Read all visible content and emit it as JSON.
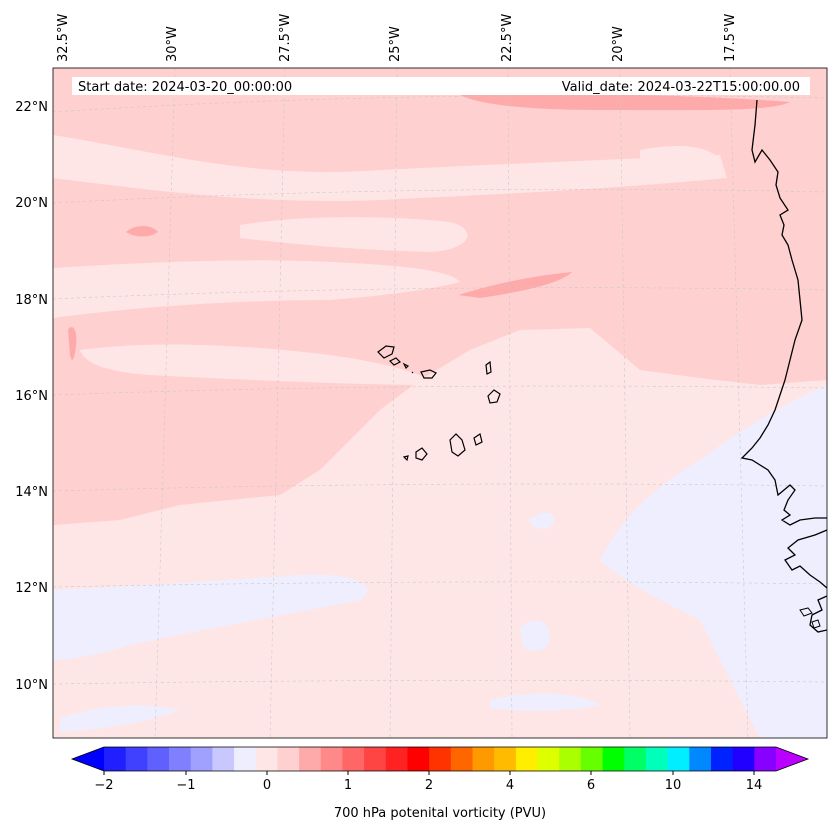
{
  "map": {
    "start_label": "Start date: 2024-03-20_00:00:00",
    "valid_label": "Valid_date: 2024-03-22T15:00:00.00",
    "longitude_labels": [
      "32.5°W",
      "30°W",
      "27.5°W",
      "25°W",
      "22.5°W",
      "20°W",
      "17.5°W"
    ],
    "latitude_labels": [
      "22°N",
      "20°N",
      "18°N",
      "16°N",
      "14°N",
      "12°N",
      "10°N"
    ],
    "colors": {
      "light_pink": "#ffe6e6",
      "pink": "#ffd0d0",
      "darker_pink": "#ffaaaa",
      "pale_lavender": "#eeeeff",
      "coastline": "#000000"
    }
  },
  "colorbar": {
    "title": "700 hPa potenital vorticity (PVU)",
    "tick_labels": [
      "−2",
      "−1",
      "0",
      "1",
      "2",
      "4",
      "6",
      "10",
      "14"
    ],
    "colors": [
      "#0000ff",
      "#2020ff",
      "#4040ff",
      "#6060ff",
      "#8080ff",
      "#a0a0ff",
      "#c8c8ff",
      "#eeeeff",
      "#ffe6e6",
      "#ffd0d0",
      "#ffaaaa",
      "#ff8888",
      "#ff6666",
      "#ff4444",
      "#ff2222",
      "#ff0000",
      "#ff3300",
      "#ff6600",
      "#ff9900",
      "#ffbb00",
      "#ffee00",
      "#ddff00",
      "#aaff00",
      "#66ff00",
      "#00ff00",
      "#00ff66",
      "#00ffbb",
      "#00eeff",
      "#0088ff",
      "#0022ff",
      "#2200ff",
      "#8800ff",
      "#bb00ff"
    ]
  }
}
